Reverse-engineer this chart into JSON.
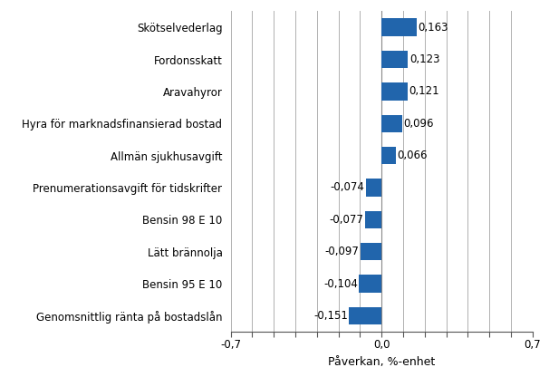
{
  "categories": [
    "Genomsnittlig ränta på bostadslån",
    "Bensin 95 E 10",
    "Lätt brännolja",
    "Bensin 98 E 10",
    "Prenumerationsavgift för tidskrifter",
    "Allmän sjukhusavgift",
    "Hyra för marknadsfinansierad bostad",
    "Aravahyror",
    "Fordonsskatt",
    "Skötselvederlag"
  ],
  "values": [
    -0.151,
    -0.104,
    -0.097,
    -0.077,
    -0.074,
    0.066,
    0.096,
    0.121,
    0.123,
    0.163
  ],
  "bar_color": "#2165AC",
  "xlabel": "Påverkan, %-enhet",
  "xlim": [
    -0.7,
    0.7
  ],
  "xticks": [
    -0.7,
    -0.6,
    -0.5,
    -0.4,
    -0.3,
    -0.2,
    -0.1,
    0.0,
    0.1,
    0.2,
    0.3,
    0.4,
    0.5,
    0.6,
    0.7
  ],
  "xtick_labels": [
    "-0,7",
    "",
    "",
    "",
    "",
    "",
    "",
    "0,0",
    "",
    "",
    "",
    "",
    "",
    "",
    "0,7"
  ],
  "value_labels": [
    "-0,151",
    "-0,104",
    "-0,097",
    "-0,077",
    "-0,074",
    "0,066",
    "0,096",
    "0,121",
    "0,123",
    "0,163"
  ],
  "background_color": "#ffffff",
  "grid_color": "#b0b0b0",
  "fontsize_ytick": 8.5,
  "fontsize_xtick": 8.5,
  "fontsize_xlabel": 9,
  "fontsize_value": 8.5,
  "bar_height": 0.55
}
